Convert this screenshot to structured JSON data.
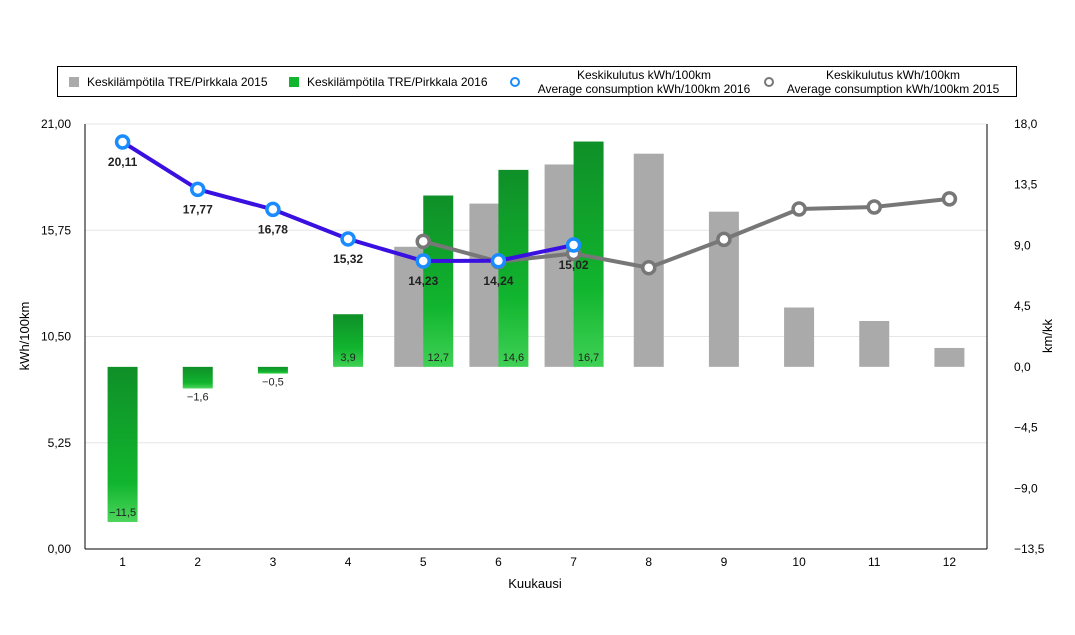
{
  "chart_data": {
    "type": "bar-line-combo",
    "xlabel": "Kuukausi",
    "ylabel_left": "kWh/100km",
    "ylabel_right": "km/kk",
    "categories": [
      "1",
      "2",
      "3",
      "4",
      "5",
      "6",
      "7",
      "8",
      "9",
      "10",
      "11",
      "12"
    ],
    "left_axis": {
      "min": 0,
      "max": 21,
      "ticks": [
        "0,00",
        "5,25",
        "10,50",
        "15,75",
        "21,00"
      ],
      "tick_values": [
        0,
        5.25,
        10.5,
        15.75,
        21
      ]
    },
    "right_axis": {
      "min": -13.5,
      "max": 18,
      "ticks": [
        "-13,5",
        "-9,0",
        "-4,5",
        "0,0",
        "4,5",
        "9,0",
        "13,5",
        "18,0"
      ],
      "tick_values": [
        -13.5,
        -9,
        -4.5,
        0,
        4.5,
        9,
        13.5,
        18
      ]
    },
    "bar_series": [
      {
        "name": "Keskilämpötila TRE/Pirkkala 2015",
        "color": "#aaaaaa",
        "axis": "right",
        "values": [
          null,
          null,
          null,
          null,
          8.9,
          12.1,
          15.0,
          15.8,
          11.5,
          4.4,
          3.4,
          1.4
        ]
      },
      {
        "name": "Keskilämpötila TRE/Pirkkala 2016",
        "color": "#1aa832",
        "axis": "right",
        "values": [
          -11.5,
          -1.6,
          -0.5,
          3.9,
          12.7,
          14.6,
          16.7,
          null,
          null,
          null,
          null,
          null
        ],
        "labels": [
          "−11,5",
          "−1,6",
          "−0,5",
          "3,9",
          "12,7",
          "14,6",
          "16,7",
          "",
          "",
          "",
          "",
          ""
        ]
      }
    ],
    "line_series": [
      {
        "name": "Keskikulutus kWh/100km Average consumption kWh/100km 2016",
        "color": "#3a10e0",
        "marker_color": "#1a8cff",
        "axis": "left",
        "values": [
          20.11,
          17.77,
          16.78,
          15.32,
          14.23,
          14.24,
          15.02,
          null,
          null,
          null,
          null,
          null
        ],
        "labels": [
          "20,11",
          "17,77",
          "16,78",
          "15,32",
          "14,23",
          "14,24",
          "15,02",
          "",
          "",
          "",
          "",
          ""
        ]
      },
      {
        "name": "Keskikulutus kWh/100km Average consumption kWh/100km 2015",
        "color": "#777777",
        "marker_color": "#777777",
        "axis": "left",
        "values": [
          null,
          null,
          null,
          null,
          15.2,
          14.2,
          14.6,
          13.9,
          15.3,
          16.8,
          16.9,
          17.3
        ]
      }
    ]
  },
  "legend": {
    "item1": "Keskilämpötila TRE/Pirkkala 2015",
    "item2": "Keskilämpötila TRE/Pirkkala 2016",
    "item3_line1": "Keskikulutus kWh/100km",
    "item3_line2": "Average consumption kWh/100km 2016",
    "item4_line1": "Keskikulutus kWh/100km",
    "item4_line2": "Average consumption kWh/100km 2015"
  }
}
